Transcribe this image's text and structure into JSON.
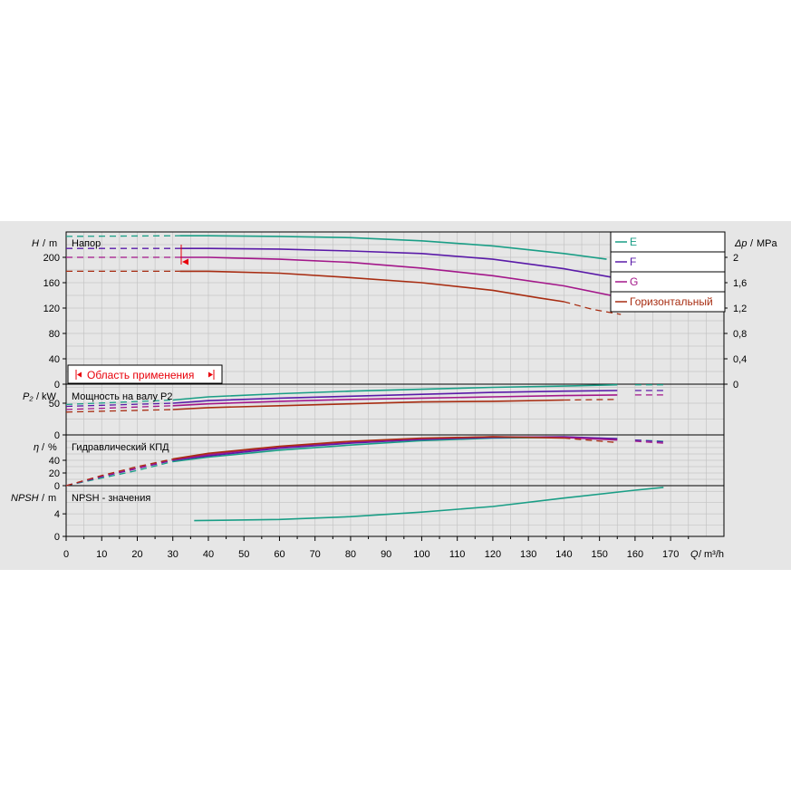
{
  "chart_data": [
    {
      "type": "line",
      "panel": "head",
      "title": "Напор",
      "ylabel_symbol": "H",
      "ylabel_unit": "m",
      "ylabel2_symbol": "Δp",
      "ylabel2_unit": "MPa",
      "ylim": [
        0,
        240
      ],
      "yticks": [
        0,
        40,
        80,
        120,
        160,
        200
      ],
      "ytick_labels": [
        "0",
        "40",
        "80",
        "120",
        "160",
        "200"
      ],
      "y2ticks": [
        0,
        40,
        80,
        120,
        160,
        200
      ],
      "y2tick_labels": [
        "0",
        "0,4",
        "0,8",
        "1,2",
        "1,6",
        "2"
      ],
      "range_label": "Область применения",
      "series": [
        {
          "name": "E",
          "color": "#1a9e86",
          "solid": [
            [
              32,
              234
            ],
            [
              40,
              234
            ],
            [
              60,
              233
            ],
            [
              80,
              231
            ],
            [
              100,
              226
            ],
            [
              120,
              218
            ],
            [
              140,
              206
            ],
            [
              152,
              197
            ]
          ],
          "dashed": [
            [
              0,
              233
            ],
            [
              32,
              234
            ]
          ]
        },
        {
          "name": "F",
          "color": "#5a1aa8",
          "solid": [
            [
              32,
              214
            ],
            [
              40,
              214
            ],
            [
              60,
              213
            ],
            [
              80,
              210
            ],
            [
              100,
              206
            ],
            [
              120,
              197
            ],
            [
              140,
              182
            ],
            [
              155,
              167
            ]
          ],
          "dashed": [
            [
              0,
              214
            ],
            [
              32,
              214
            ]
          ]
        },
        {
          "name": "G",
          "color": "#a3178a",
          "solid": [
            [
              32,
              200
            ],
            [
              40,
              200
            ],
            [
              60,
              197
            ],
            [
              80,
              192
            ],
            [
              100,
              183
            ],
            [
              120,
              171
            ],
            [
              140,
              155
            ],
            [
              168,
              123
            ]
          ],
          "dashed": [
            [
              0,
              200
            ],
            [
              32,
              200
            ]
          ]
        },
        {
          "name": "Горизонтальный",
          "color": "#a82d12",
          "solid": [
            [
              32,
              178
            ],
            [
              40,
              178
            ],
            [
              60,
              175
            ],
            [
              80,
              168
            ],
            [
              100,
              160
            ],
            [
              120,
              148
            ],
            [
              133,
              136
            ],
            [
              140,
              130
            ]
          ],
          "dashed": [
            [
              0,
              178
            ],
            [
              32,
              178
            ]
          ],
          "dashed_tail": [
            [
              140,
              130
            ],
            [
              148,
              118
            ],
            [
              156,
              110
            ]
          ]
        }
      ]
    },
    {
      "type": "line",
      "panel": "power",
      "title": "Мощность на валу P2",
      "ylabel_symbol": "P₂",
      "ylabel_unit": "kW",
      "ylim": [
        0,
        80
      ],
      "yticks": [
        0,
        50
      ],
      "ytick_labels": [
        "0",
        "50"
      ],
      "series": [
        {
          "name": "E",
          "color": "#1a9e86",
          "solid": [
            [
              30,
              55
            ],
            [
              40,
              60
            ],
            [
              60,
              65
            ],
            [
              80,
              69
            ],
            [
              100,
              72
            ],
            [
              120,
              75
            ],
            [
              140,
              77
            ],
            [
              155,
              79
            ]
          ],
          "dashed": [
            [
              0,
              48
            ],
            [
              30,
              55
            ]
          ],
          "dashed_tail": [
            [
              160,
              79
            ],
            [
              168,
              79
            ]
          ]
        },
        {
          "name": "F",
          "color": "#5a1aa8",
          "solid": [
            [
              30,
              50
            ],
            [
              40,
              54
            ],
            [
              60,
              58
            ],
            [
              80,
              61
            ],
            [
              100,
              64
            ],
            [
              120,
              67
            ],
            [
              140,
              69
            ],
            [
              155,
              70
            ]
          ],
          "dashed": [
            [
              0,
              45
            ],
            [
              30,
              50
            ]
          ],
          "dashed_tail": [
            [
              160,
              70
            ],
            [
              168,
              70
            ]
          ]
        },
        {
          "name": "G",
          "color": "#a3178a",
          "solid": [
            [
              30,
              46
            ],
            [
              40,
              49
            ],
            [
              60,
              53
            ],
            [
              80,
              56
            ],
            [
              100,
              58
            ],
            [
              120,
              60
            ],
            [
              140,
              62
            ],
            [
              155,
              63
            ]
          ],
          "dashed": [
            [
              0,
              40
            ],
            [
              30,
              46
            ]
          ],
          "dashed_tail": [
            [
              160,
              63
            ],
            [
              168,
              63
            ]
          ]
        },
        {
          "name": "Горизонтальный",
          "color": "#a82d12",
          "solid": [
            [
              30,
              40
            ],
            [
              40,
              43
            ],
            [
              60,
              46
            ],
            [
              80,
              49
            ],
            [
              100,
              52
            ],
            [
              120,
              53
            ],
            [
              140,
              55
            ]
          ],
          "dashed": [
            [
              0,
              36
            ],
            [
              30,
              40
            ]
          ],
          "dashed_tail": [
            [
              140,
              55
            ],
            [
              155,
              56
            ]
          ]
        }
      ]
    },
    {
      "type": "line",
      "panel": "efficiency",
      "title": "Гидравлический КПД",
      "ylabel_symbol": "η",
      "ylabel_unit": "%",
      "ylim": [
        0,
        80
      ],
      "yticks": [
        0,
        20,
        40
      ],
      "ytick_labels": [
        "0",
        "20",
        "40"
      ],
      "series": [
        {
          "name": "E",
          "color": "#1a9e86",
          "solid": [
            [
              30,
              38
            ],
            [
              40,
              45
            ],
            [
              60,
              56
            ],
            [
              80,
              64
            ],
            [
              100,
              71
            ],
            [
              120,
              75
            ],
            [
              140,
              76
            ],
            [
              155,
              74
            ]
          ],
          "dashed": [
            [
              0,
              0
            ],
            [
              10,
              12
            ],
            [
              20,
              24
            ],
            [
              30,
              38
            ]
          ],
          "dashed_tail": [
            [
              160,
              72
            ],
            [
              168,
              70
            ]
          ]
        },
        {
          "name": "F",
          "color": "#5a1aa8",
          "solid": [
            [
              30,
              40
            ],
            [
              40,
              47
            ],
            [
              60,
              59
            ],
            [
              80,
              67
            ],
            [
              100,
              73
            ],
            [
              120,
              76
            ],
            [
              140,
              77
            ],
            [
              155,
              74
            ]
          ],
          "dashed": [
            [
              0,
              0
            ],
            [
              10,
              14
            ],
            [
              20,
              27
            ],
            [
              30,
              40
            ]
          ],
          "dashed_tail": [
            [
              160,
              72
            ],
            [
              168,
              69
            ]
          ]
        },
        {
          "name": "G",
          "color": "#a3178a",
          "solid": [
            [
              30,
              41
            ],
            [
              40,
              49
            ],
            [
              60,
              61
            ],
            [
              80,
              69
            ],
            [
              100,
              74
            ],
            [
              120,
              77
            ],
            [
              140,
              76
            ],
            [
              155,
              72
            ]
          ],
          "dashed": [
            [
              0,
              0
            ],
            [
              10,
              15
            ],
            [
              20,
              28
            ],
            [
              30,
              41
            ]
          ],
          "dashed_tail": [
            [
              160,
              70
            ],
            [
              168,
              67
            ]
          ]
        },
        {
          "name": "Горизонтальный",
          "color": "#a82d12",
          "solid": [
            [
              30,
              42
            ],
            [
              40,
              51
            ],
            [
              60,
              62
            ],
            [
              80,
              70
            ],
            [
              100,
              75
            ],
            [
              120,
              77
            ],
            [
              140,
              75
            ]
          ],
          "dashed": [
            [
              0,
              0
            ],
            [
              10,
              16
            ],
            [
              20,
              30
            ],
            [
              30,
              42
            ]
          ],
          "dashed_tail": [
            [
              140,
              75
            ],
            [
              155,
              68
            ]
          ]
        }
      ]
    },
    {
      "type": "line",
      "panel": "npsh",
      "title": "NPSH - значения",
      "ylabel_symbol": "NPSH",
      "ylabel_unit": "m",
      "ylim": [
        0,
        9
      ],
      "yticks": [
        0,
        4
      ],
      "ytick_labels": [
        "0",
        "4"
      ],
      "series": [
        {
          "name": "E",
          "color": "#1a9e86",
          "solid": [
            [
              36,
              2.8
            ],
            [
              60,
              3.0
            ],
            [
              80,
              3.5
            ],
            [
              100,
              4.3
            ],
            [
              120,
              5.3
            ],
            [
              140,
              6.8
            ],
            [
              160,
              8.2
            ],
            [
              168,
              8.7
            ]
          ]
        }
      ]
    }
  ],
  "x_axis": {
    "xlabel_symbol": "Q",
    "xlabel_unit": "m³/h",
    "xlim": [
      0,
      185
    ],
    "ticks": [
      0,
      10,
      20,
      30,
      40,
      50,
      60,
      70,
      80,
      90,
      100,
      110,
      120,
      130,
      140,
      150,
      160,
      170
    ],
    "tick_labels": [
      "0",
      "10",
      "20",
      "30",
      "40",
      "50",
      "60",
      "70",
      "80",
      "90",
      "100",
      "110",
      "120",
      "130",
      "140",
      "150",
      "160",
      "170"
    ]
  },
  "legend": {
    "placement": "top-right",
    "entries": [
      {
        "label": "E",
        "color": "#1a9e86"
      },
      {
        "label": "F",
        "color": "#5a1aa8"
      },
      {
        "label": "G",
        "color": "#a3178a"
      },
      {
        "label": "Горизонтальный",
        "color": "#a82d12"
      }
    ]
  },
  "colors": {
    "background": "#e6e6e6",
    "grid": "#c4c4c4",
    "accent_red": "#e8000a"
  }
}
